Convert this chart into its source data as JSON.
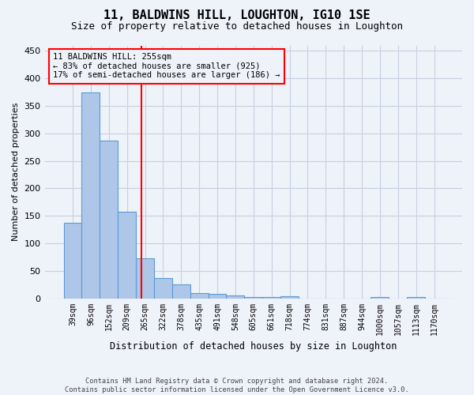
{
  "title": "11, BALDWINS HILL, LOUGHTON, IG10 1SE",
  "subtitle": "Size of property relative to detached houses in Loughton",
  "xlabel": "Distribution of detached houses by size in Loughton",
  "ylabel": "Number of detached properties",
  "footer_line1": "Contains HM Land Registry data © Crown copyright and database right 2024.",
  "footer_line2": "Contains public sector information licensed under the Open Government Licence v3.0.",
  "bar_labels": [
    "39sqm",
    "96sqm",
    "152sqm",
    "209sqm",
    "265sqm",
    "322sqm",
    "378sqm",
    "435sqm",
    "491sqm",
    "548sqm",
    "605sqm",
    "661sqm",
    "718sqm",
    "774sqm",
    "831sqm",
    "887sqm",
    "944sqm",
    "1000sqm",
    "1057sqm",
    "1113sqm",
    "1170sqm"
  ],
  "bar_values": [
    137,
    375,
    287,
    158,
    73,
    37,
    25,
    10,
    8,
    6,
    3,
    3,
    4,
    0,
    0,
    0,
    0,
    3,
    0,
    3,
    0
  ],
  "bar_color": "#aec6e8",
  "bar_edge_color": "#5b9bd5",
  "grid_color": "#c8d0e0",
  "background_color": "#eef2f9",
  "vline_x": 3.82,
  "vline_color": "red",
  "annotation_line1": "11 BALDWINS HILL: 255sqm",
  "annotation_line2": "← 83% of detached houses are smaller (925)",
  "annotation_line3": "17% of semi-detached houses are larger (186) →",
  "annotation_box_color": "red",
  "ylim": [
    0,
    460
  ],
  "yticks": [
    0,
    50,
    100,
    150,
    200,
    250,
    300,
    350,
    400,
    450
  ]
}
